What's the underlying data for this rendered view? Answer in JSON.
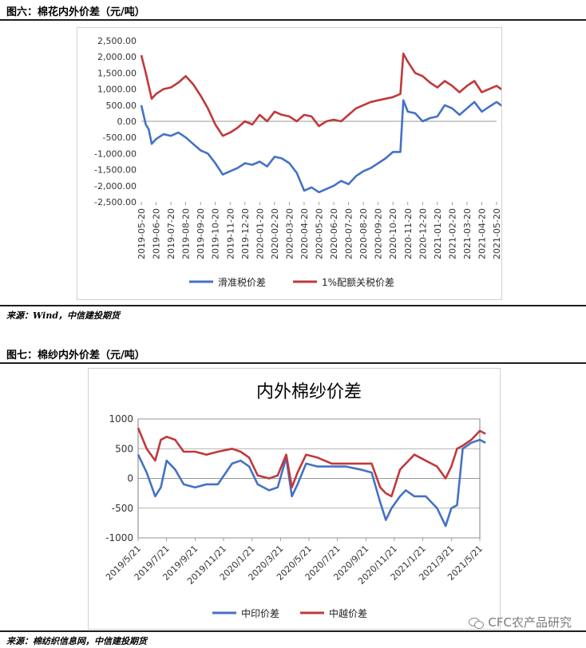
{
  "figure6": {
    "title": "图六：棉花内外价差（元/吨）",
    "source": "来源：Wind，中信建投期货"
  },
  "figure7": {
    "title": "图七：棉纱内外价差（元/吨）",
    "source": "来源：棉纺织信息网，中信建投期货"
  },
  "watermark": "CFC农产品研究",
  "chart_data": [
    {
      "type": "line",
      "title": "",
      "ylim": [
        -2500,
        2500
      ],
      "y_ticks": [
        2500,
        2000,
        1500,
        1000,
        500,
        0,
        -500,
        -1000,
        -1500,
        -2000,
        -2500
      ],
      "y_tick_labels": [
        "2,500.00",
        "2,000.00",
        "1,500.00",
        "1,000.00",
        "500.00",
        "0.00",
        "-500.00",
        "-1,000.00",
        "-1,500.00",
        "-2,000.00",
        "-2,500.00"
      ],
      "x_tick_labels": [
        "2019-05-20",
        "2019-06-20",
        "2019-07-20",
        "2019-08-20",
        "2019-09-20",
        "2019-10-20",
        "2019-11-20",
        "2019-12-20",
        "2020-01-20",
        "2020-02-20",
        "2020-03-20",
        "2020-04-20",
        "2020-05-20",
        "2020-06-20",
        "2020-07-20",
        "2020-08-20",
        "2020-09-20",
        "2020-10-20",
        "2020-11-20",
        "2020-12-20",
        "2021-01-20",
        "2021-02-20",
        "2021-03-20",
        "2021-04-20",
        "2021-05-20"
      ],
      "legend_position": "bottom",
      "grid": false,
      "series": [
        {
          "name": "滑准税价差",
          "color": "#4472C4",
          "points": [
            [
              0,
              500
            ],
            [
              0.3,
              -100
            ],
            [
              0.5,
              -250
            ],
            [
              0.7,
              -700
            ],
            [
              1,
              -550
            ],
            [
              1.5,
              -400
            ],
            [
              2,
              -450
            ],
            [
              2.5,
              -350
            ],
            [
              3,
              -500
            ],
            [
              3.5,
              -700
            ],
            [
              4,
              -900
            ],
            [
              4.5,
              -1000
            ],
            [
              5,
              -1300
            ],
            [
              5.5,
              -1650
            ],
            [
              6,
              -1550
            ],
            [
              6.5,
              -1450
            ],
            [
              7,
              -1300
            ],
            [
              7.5,
              -1350
            ],
            [
              8,
              -1250
            ],
            [
              8.5,
              -1400
            ],
            [
              9,
              -1100
            ],
            [
              9.5,
              -1150
            ],
            [
              10,
              -1300
            ],
            [
              10.5,
              -1600
            ],
            [
              11,
              -2150
            ],
            [
              11.5,
              -2050
            ],
            [
              12,
              -2200
            ],
            [
              12.5,
              -2100
            ],
            [
              13,
              -2000
            ],
            [
              13.5,
              -1850
            ],
            [
              14,
              -1950
            ],
            [
              14.5,
              -1700
            ],
            [
              15,
              -1550
            ],
            [
              15.5,
              -1450
            ],
            [
              16,
              -1300
            ],
            [
              16.5,
              -1150
            ],
            [
              17,
              -950
            ],
            [
              17.5,
              -950
            ],
            [
              17.7,
              650
            ],
            [
              18,
              300
            ],
            [
              18.5,
              250
            ],
            [
              19,
              0
            ],
            [
              19.5,
              100
            ],
            [
              20,
              150
            ],
            [
              20.5,
              500
            ],
            [
              21,
              400
            ],
            [
              21.5,
              200
            ],
            [
              22,
              400
            ],
            [
              22.5,
              600
            ],
            [
              23,
              300
            ],
            [
              23.5,
              450
            ],
            [
              24,
              600
            ],
            [
              24.3,
              500
            ],
            [
              24.6,
              400
            ],
            [
              25,
              500
            ]
          ]
        },
        {
          "name": "1%配额关税价差",
          "color": "#C0393B",
          "points": [
            [
              0,
              2050
            ],
            [
              0.3,
              1500
            ],
            [
              0.5,
              1100
            ],
            [
              0.7,
              700
            ],
            [
              1,
              850
            ],
            [
              1.5,
              1000
            ],
            [
              2,
              1050
            ],
            [
              2.5,
              1200
            ],
            [
              3,
              1400
            ],
            [
              3.5,
              1150
            ],
            [
              4,
              800
            ],
            [
              4.5,
              400
            ],
            [
              5,
              -100
            ],
            [
              5.5,
              -450
            ],
            [
              6,
              -350
            ],
            [
              6.5,
              -200
            ],
            [
              7,
              0
            ],
            [
              7.5,
              -100
            ],
            [
              8,
              200
            ],
            [
              8.5,
              0
            ],
            [
              9,
              300
            ],
            [
              9.5,
              200
            ],
            [
              10,
              150
            ],
            [
              10.5,
              0
            ],
            [
              11,
              200
            ],
            [
              11.5,
              150
            ],
            [
              12,
              -150
            ],
            [
              12.5,
              0
            ],
            [
              13,
              50
            ],
            [
              13.5,
              0
            ],
            [
              14,
              200
            ],
            [
              14.5,
              400
            ],
            [
              15,
              500
            ],
            [
              15.5,
              600
            ],
            [
              16,
              650
            ],
            [
              16.5,
              700
            ],
            [
              17,
              750
            ],
            [
              17.5,
              850
            ],
            [
              17.7,
              2100
            ],
            [
              18,
              1850
            ],
            [
              18.5,
              1500
            ],
            [
              19,
              1400
            ],
            [
              19.5,
              1200
            ],
            [
              20,
              1050
            ],
            [
              20.5,
              1250
            ],
            [
              21,
              1100
            ],
            [
              21.5,
              900
            ],
            [
              22,
              1100
            ],
            [
              22.5,
              1250
            ],
            [
              23,
              900
            ],
            [
              23.5,
              1000
            ],
            [
              24,
              1100
            ],
            [
              24.3,
              1000
            ],
            [
              24.6,
              1150
            ],
            [
              25,
              1050
            ]
          ]
        }
      ]
    },
    {
      "type": "line",
      "title": "内外棉纱价差",
      "ylim": [
        -1000,
        1000
      ],
      "y_ticks": [
        1000,
        500,
        0,
        -500,
        -1000
      ],
      "y_tick_labels": [
        "1000",
        "500",
        "0",
        "-500",
        "-1000"
      ],
      "x_tick_labels": [
        "2019/5/21",
        "2019/7/21",
        "2019/9/21",
        "2019/11/21",
        "2020/1/21",
        "2020/3/21",
        "2020/5/21",
        "2020/7/21",
        "2020/9/21",
        "2020/11/21",
        "2021/1/21",
        "2021/3/21",
        "2021/5/21"
      ],
      "legend_position": "bottom",
      "grid": true,
      "series": [
        {
          "name": "中印价差",
          "color": "#4472C4",
          "points": [
            [
              0,
              400
            ],
            [
              0.3,
              100
            ],
            [
              0.6,
              -300
            ],
            [
              0.8,
              -150
            ],
            [
              1,
              300
            ],
            [
              1.3,
              150
            ],
            [
              1.6,
              -100
            ],
            [
              2,
              -150
            ],
            [
              2.4,
              -100
            ],
            [
              2.8,
              -100
            ],
            [
              3.3,
              250
            ],
            [
              3.6,
              300
            ],
            [
              3.9,
              200
            ],
            [
              4.2,
              -100
            ],
            [
              4.6,
              -200
            ],
            [
              4.9,
              -150
            ],
            [
              5.2,
              350
            ],
            [
              5.4,
              -300
            ],
            [
              5.6,
              -100
            ],
            [
              5.9,
              250
            ],
            [
              6.3,
              200
            ],
            [
              6.8,
              200
            ],
            [
              7.3,
              200
            ],
            [
              7.8,
              150
            ],
            [
              8.2,
              100
            ],
            [
              8.5,
              -400
            ],
            [
              8.7,
              -700
            ],
            [
              8.9,
              -500
            ],
            [
              9.2,
              -300
            ],
            [
              9.4,
              -200
            ],
            [
              9.7,
              -300
            ],
            [
              10.1,
              -300
            ],
            [
              10.5,
              -500
            ],
            [
              10.8,
              -800
            ],
            [
              11,
              -500
            ],
            [
              11.2,
              -450
            ],
            [
              11.4,
              500
            ],
            [
              11.7,
              600
            ],
            [
              12,
              650
            ],
            [
              12.2,
              600
            ]
          ]
        },
        {
          "name": "中越价差",
          "color": "#C0393B",
          "points": [
            [
              0,
              850
            ],
            [
              0.3,
              500
            ],
            [
              0.6,
              300
            ],
            [
              0.8,
              650
            ],
            [
              1,
              700
            ],
            [
              1.3,
              650
            ],
            [
              1.6,
              450
            ],
            [
              2,
              450
            ],
            [
              2.4,
              400
            ],
            [
              2.8,
              450
            ],
            [
              3.3,
              500
            ],
            [
              3.6,
              450
            ],
            [
              3.9,
              350
            ],
            [
              4.2,
              50
            ],
            [
              4.6,
              0
            ],
            [
              4.9,
              50
            ],
            [
              5.2,
              400
            ],
            [
              5.4,
              -150
            ],
            [
              5.6,
              100
            ],
            [
              5.9,
              400
            ],
            [
              6.3,
              350
            ],
            [
              6.8,
              250
            ],
            [
              7.3,
              250
            ],
            [
              7.8,
              250
            ],
            [
              8.2,
              250
            ],
            [
              8.5,
              -150
            ],
            [
              8.7,
              -250
            ],
            [
              8.9,
              -300
            ],
            [
              9.2,
              150
            ],
            [
              9.4,
              250
            ],
            [
              9.7,
              400
            ],
            [
              10.1,
              300
            ],
            [
              10.5,
              200
            ],
            [
              10.8,
              0
            ],
            [
              11,
              200
            ],
            [
              11.2,
              500
            ],
            [
              11.4,
              550
            ],
            [
              11.7,
              650
            ],
            [
              12,
              800
            ],
            [
              12.2,
              750
            ]
          ]
        }
      ]
    }
  ]
}
